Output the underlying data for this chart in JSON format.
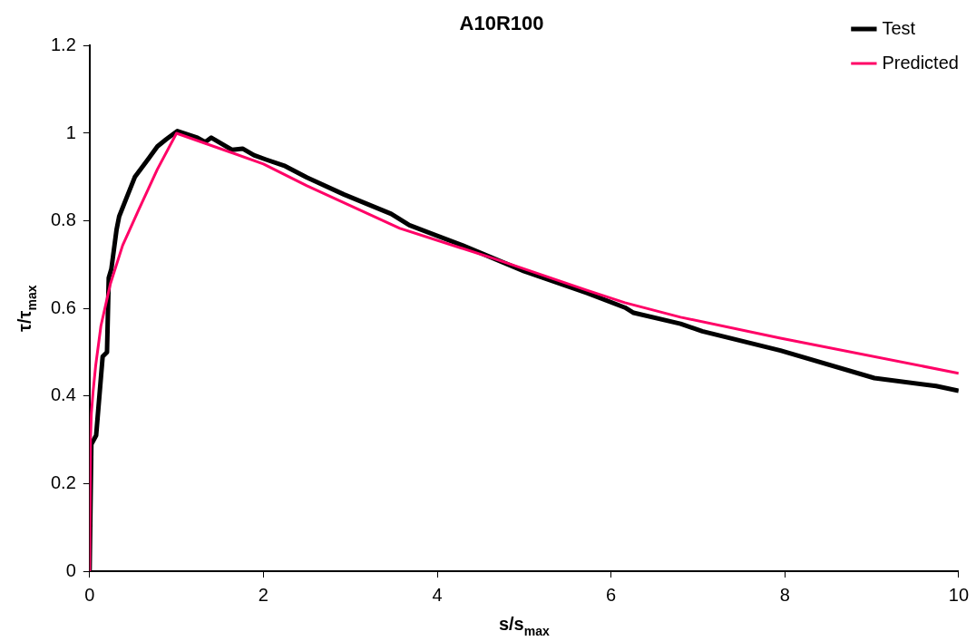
{
  "chart_data": {
    "type": "line",
    "title": "A10R100",
    "xlabel": "s/s$_{max}$",
    "ylabel": "τ/τ$_{max}$",
    "xlim": [
      0,
      10
    ],
    "xticks": [
      0,
      2,
      4,
      6,
      8,
      10
    ],
    "ylim": [
      0,
      1.2
    ],
    "yticks": [
      0,
      0.2,
      0.4,
      0.6,
      0.8,
      1,
      1.2
    ],
    "grid": false,
    "legend": "top right",
    "marker": "none",
    "line_style": "solid",
    "series": [
      {
        "name": "Test",
        "color": "#000000",
        "x": [
          0,
          0.02,
          0.075,
          0.15,
          0.2,
          0.22,
          0.25,
          0.31,
          0.34,
          0.42,
          0.52,
          0.67,
          0.78,
          0.88,
          1.01,
          1.24,
          1.33,
          1.4,
          1.64,
          1.76,
          1.89,
          2.03,
          2.25,
          2.5,
          2.93,
          3.47,
          3.68,
          4.29,
          5.0,
          5.73,
          6.16,
          6.26,
          6.8,
          7.05,
          7.95,
          9.03,
          9.74,
          10
        ],
        "values": [
          0,
          0.29,
          0.31,
          0.49,
          0.5,
          0.67,
          0.69,
          0.78,
          0.81,
          0.85,
          0.9,
          0.94,
          0.97,
          0.986,
          1.005,
          0.99,
          0.98,
          0.99,
          0.962,
          0.965,
          0.95,
          0.94,
          0.925,
          0.899,
          0.86,
          0.816,
          0.79,
          0.744,
          0.685,
          0.635,
          0.602,
          0.59,
          0.565,
          0.548,
          0.504,
          0.441,
          0.423,
          0.412
        ]
      },
      {
        "name": "Predicted",
        "color": "#ff0066",
        "x": [
          0,
          0.01,
          0.02,
          0.04,
          0.07,
          0.13,
          0.24,
          0.38,
          0.56,
          0.78,
          1.0,
          2.0,
          2.5,
          3.57,
          4.65,
          5.73,
          6.16,
          6.8,
          7.95,
          10
        ],
        "values": [
          0,
          0.3,
          0.36,
          0.41,
          0.47,
          0.56,
          0.657,
          0.744,
          0.823,
          0.918,
          1.0,
          0.93,
          0.88,
          0.783,
          0.714,
          0.641,
          0.613,
          0.58,
          0.532,
          0.452
        ]
      }
    ]
  }
}
